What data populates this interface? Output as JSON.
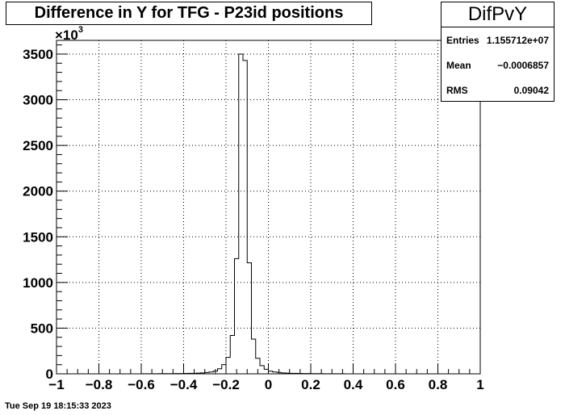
{
  "title": "Difference in Y for TFG - P23id positions",
  "stats": {
    "name": "DifPvY",
    "rows": [
      {
        "label": "Entries",
        "value": "1.155712e+07"
      },
      {
        "label": "Mean",
        "value": "−0.0006857"
      },
      {
        "label": "RMS",
        "value": "0.09042"
      }
    ]
  },
  "footer": "Tue Sep 19 18:15:33 2023",
  "chart_data": {
    "type": "bar",
    "title": "Difference in Y for TFG - P23id positions",
    "xlim": [
      -1,
      1
    ],
    "ylim": [
      0,
      3650
    ],
    "y_multiplier_label": "×10",
    "y_multiplier_exponent": "3",
    "grid": true,
    "x_ticks": [
      -1,
      -0.8,
      -0.6,
      -0.4,
      -0.2,
      0,
      0.2,
      0.4,
      0.6,
      0.8,
      1
    ],
    "x_tick_labels": [
      "−1",
      "−0.8",
      "−0.6",
      "−0.4",
      "−0.2",
      "0",
      "0.2",
      "0.4",
      "0.6",
      "0.8",
      "1"
    ],
    "y_ticks": [
      0,
      500,
      1000,
      1500,
      2000,
      2500,
      3000,
      3500
    ],
    "y_tick_labels": [
      "0",
      "500",
      "1000",
      "1500",
      "2000",
      "2500",
      "3000",
      "3500"
    ],
    "bin_edges_start": -1.0,
    "bin_width": 0.02,
    "values": [
      0,
      0,
      0,
      0,
      0,
      0,
      0,
      0,
      0,
      0,
      0,
      0,
      0,
      0,
      0,
      0,
      0,
      0,
      0,
      0,
      1,
      1,
      1,
      1,
      2,
      2,
      2,
      2,
      3,
      3,
      4,
      5,
      6,
      8,
      10,
      14,
      20,
      30,
      55,
      100,
      180,
      420,
      1260,
      3500,
      3430,
      1215,
      380,
      170,
      90,
      50,
      30,
      20,
      15,
      10,
      8,
      6,
      5,
      4,
      3,
      3,
      2,
      2,
      2,
      1,
      1,
      1,
      1,
      1,
      0,
      0,
      0,
      0,
      0,
      0,
      0,
      0,
      0,
      0,
      0,
      0,
      0,
      0,
      0,
      0,
      0,
      0,
      0,
      0,
      0,
      0,
      0,
      0,
      0,
      0,
      0,
      0,
      0,
      0,
      0,
      0
    ]
  }
}
